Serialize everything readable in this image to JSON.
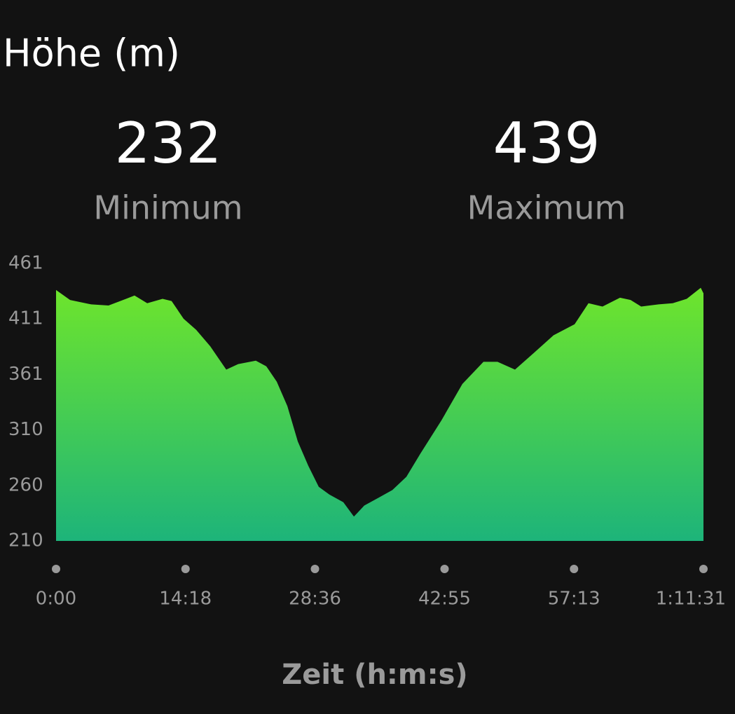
{
  "chart_data": {
    "type": "area",
    "title": "Höhe (m)",
    "x_label": "Zeit (h:m:s)",
    "stats": [
      {
        "value": 232,
        "label": "Minimum"
      },
      {
        "value": 439,
        "label": "Maximum"
      }
    ],
    "x": [
      0,
      93,
      232,
      348,
      464,
      520,
      604,
      706,
      766,
      845,
      929,
      1022,
      1128,
      1207,
      1324,
      1393,
      1463,
      1533,
      1602,
      1672,
      1741,
      1811,
      1904,
      1974,
      2043,
      2136,
      2229,
      2322,
      2415,
      2554,
      2693,
      2833,
      2926,
      3042,
      3158,
      3297,
      3437,
      3529,
      3622,
      3738,
      3808,
      3878,
      3994,
      4087,
      4180,
      4273,
      4291
    ],
    "values": [
      437,
      428,
      424,
      423,
      429,
      432,
      425,
      429,
      427,
      411,
      401,
      386,
      365,
      370,
      373,
      368,
      354,
      332,
      300,
      278,
      259,
      252,
      245,
      232,
      242,
      249,
      256,
      268,
      289,
      319,
      352,
      372,
      372,
      365,
      379,
      396,
      406,
      425,
      422,
      430,
      428,
      422,
      424,
      425,
      429,
      439,
      434
    ],
    "fill_gradient": [
      "#6ee52c",
      "#1db47a"
    ],
    "xlim": [
      0,
      4291
    ],
    "xticks": [
      {
        "value": 0,
        "label": "0:00"
      },
      {
        "value": 858,
        "label": "14:18"
      },
      {
        "value": 1716,
        "label": "28:36"
      },
      {
        "value": 2575,
        "label": "42:55"
      },
      {
        "value": 3433,
        "label": "57:13"
      },
      {
        "value": 4291,
        "label": "1:11:31"
      }
    ],
    "ylim": [
      210,
      461
    ],
    "yticks": [
      210,
      {
        "value": 260.2,
        "label": "260"
      },
      {
        "value": 310.4,
        "label": "310"
      },
      {
        "value": 360.6,
        "label": "361"
      },
      {
        "value": 410.8,
        "label": "411"
      },
      461
    ]
  }
}
